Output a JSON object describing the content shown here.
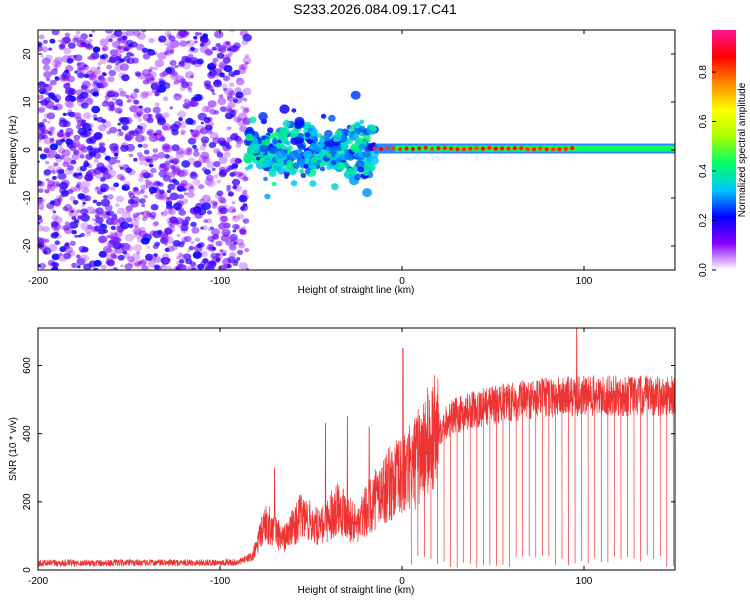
{
  "figure": {
    "title": "S233.2026.084.09.17.C41"
  },
  "chart_data": [
    {
      "type": "heatmap",
      "name": "spectrogram",
      "xlabel": "Height of straight line (km)",
      "ylabel": "Frequency (Hz)",
      "xlim": [
        -200,
        150
      ],
      "ylim": [
        -25,
        25
      ],
      "xticks": [
        -200,
        -100,
        0,
        100
      ],
      "yticks": [
        -20,
        -10,
        0,
        10,
        20
      ],
      "xtick_labels": [
        "-200",
        "-100",
        "0",
        "100"
      ],
      "ytick_labels": [
        "-20",
        "-10",
        "0",
        "10",
        "20"
      ],
      "regions": [
        {
          "description": "broadband noise",
          "x_range": [
            -200,
            -85
          ],
          "freq_range": [
            -25,
            25
          ],
          "amplitude": [
            0.0,
            0.25
          ]
        },
        {
          "description": "onset cluster",
          "x_range": [
            -85,
            -15
          ],
          "freq_range": [
            -10,
            8
          ],
          "amplitude": [
            0.1,
            0.5
          ]
        },
        {
          "description": "narrow carrier",
          "x_range": [
            -15,
            150
          ],
          "freq_center": 0.3,
          "amplitude": [
            0.2,
            0.9
          ]
        }
      ],
      "colorbar": {
        "label": "Normalized spectral amplitude",
        "range": [
          0.0,
          0.97
        ],
        "ticks": [
          0.0,
          0.2,
          0.4,
          0.6,
          0.8
        ],
        "tick_labels": [
          "0.0",
          "0.2",
          "0.4",
          "0.6",
          "0.8"
        ],
        "colors": [
          "#ffffff",
          "#8a00ff",
          "#0000ff",
          "#00c8ff",
          "#00ff66",
          "#aaff00",
          "#ffff00",
          "#ff8800",
          "#ff0000",
          "#ff1493"
        ]
      }
    },
    {
      "type": "line",
      "name": "snr",
      "xlabel": "Height of straight line (km)",
      "ylabel": "SNR (10 * v/v)",
      "xlim": [
        -200,
        150
      ],
      "ylim": [
        0,
        710
      ],
      "xticks": [
        -200,
        -100,
        0,
        100
      ],
      "yticks": [
        0,
        200,
        400,
        600
      ],
      "xtick_labels": [
        "-200",
        "-100",
        "0",
        "100"
      ],
      "ytick_labels": [
        "0",
        "200",
        "400",
        "600"
      ],
      "color": "#ee3333",
      "envelope": {
        "x": [
          -200,
          -90,
          -82,
          -75,
          -65,
          -55,
          -45,
          -35,
          -25,
          -15,
          -5,
          0,
          5,
          15,
          25,
          35,
          50,
          75,
          100,
          150
        ],
        "y": [
          20,
          22,
          40,
          140,
          90,
          160,
          120,
          190,
          130,
          210,
          260,
          270,
          300,
          380,
          440,
          465,
          485,
          505,
          510,
          510
        ]
      },
      "spikes": [
        {
          "x": -70,
          "y": 300
        },
        {
          "x": -42,
          "y": 430
        },
        {
          "x": -30,
          "y": 450
        },
        {
          "x": -18,
          "y": 420
        },
        {
          "x": 0.5,
          "y": 650
        },
        {
          "x": 96,
          "y": 720
        }
      ],
      "dropouts_start": 5,
      "dropout_spacing": 3.6
    }
  ]
}
